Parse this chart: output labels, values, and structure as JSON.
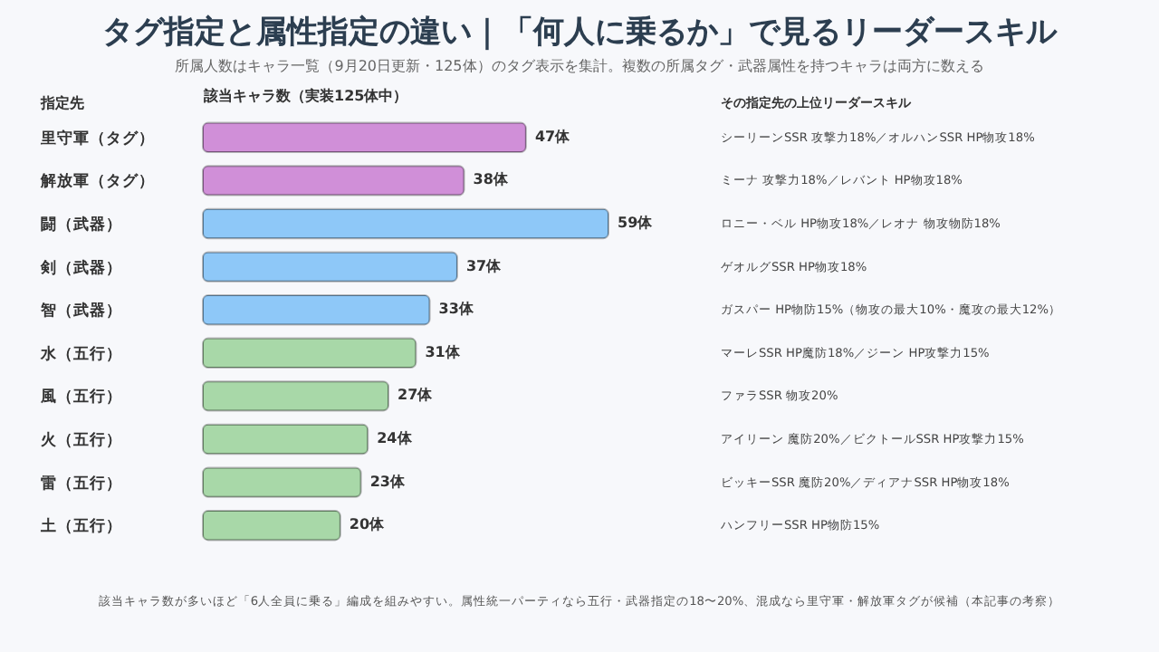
{
  "chart_data": {
    "type": "bar",
    "orientation": "horizontal",
    "title": "タグ指定と属性指定の違い｜「何人に乗るか」で見るリーダースキル",
    "subtitle": "所属人数はキャラ一覧（9月20日更新・125体）のタグ表示を集計。複数の所属タグ・武器属性を持つキャラは両方に数える",
    "ylabel": "指定先",
    "xlabel": "該当キャラ数（実装125体中）",
    "categories": [
      "里守軍（タグ）",
      "解放軍（タグ）",
      "闘（武器）",
      "剣（武器）",
      "智（武器）",
      "水（五行）",
      "風（五行）",
      "火（五行）",
      "雷（五行）",
      "土（五行）"
    ],
    "values": [
      47,
      38,
      59,
      37,
      33,
      31,
      27,
      24,
      23,
      20
    ],
    "colors": [
      "#d08fd8",
      "#d08fd8",
      "#8ec8f8",
      "#8ec8f8",
      "#8ec8f8",
      "#a8d8a8",
      "#a8d8a8",
      "#a8d8a8",
      "#a8d8a8",
      "#a8d8a8"
    ],
    "value_labels": [
      "47体",
      "38体",
      "59体",
      "37体",
      "33体",
      "31体",
      "27体",
      "24体",
      "23体",
      "20体"
    ],
    "grid": false,
    "annotations": [
      "その指定先の上位リーダースキル",
      "シーリーンSSR 攻撃力18%／オルハンSSR HP物攻18%",
      "ミーナ 攻撃力18%／レバント HP物攻18%",
      "ロニー・ベル HP物攻18%／レオナ 物攻物防18%",
      "ゲオルグSSR HP物攻18%",
      "ガスパー HP物防15%（物攻の最大10%・魔攻の最大12%）",
      "マーレSSR HP魔防18%／ジーン HP攻撃力15%",
      "ファラSSR 物攻20%",
      "アイリーン 魔防20%／ビクトールSSR HP攻撃力15%",
      "ビッキーSSR 魔防20%／ディアナSSR HP物攻18%",
      "ハンフリーSSR HP物防15%",
      "該当キャラ数が多いほど「6人全員に乗る」編成を組みやすい。属性統一パーティなら五行・武器指定の18〜20%、混成なら里守軍・解放軍タグが候補（本記事の考察）"
    ]
  }
}
